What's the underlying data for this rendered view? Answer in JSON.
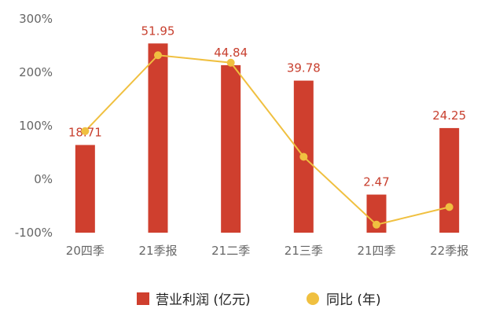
{
  "chart_data": {
    "type": "bar",
    "categories": [
      "20四季",
      "21季报",
      "21二季",
      "21三季",
      "21四季",
      "22季报"
    ],
    "series": [
      {
        "name": "营业利润 (亿元)",
        "kind": "bar",
        "axis": "left",
        "values": [
          18.71,
          51.95,
          44.84,
          39.78,
          2.47,
          24.25
        ],
        "data_labels": [
          "18.71",
          "51.95",
          "44.84",
          "39.78",
          "2.47",
          "24.25"
        ],
        "color": "#cf3f2e"
      },
      {
        "name": "同比 (年)",
        "kind": "line",
        "axis": "right",
        "values": [
          90,
          232,
          218,
          42,
          -85,
          -52
        ],
        "color": "#f0c040"
      }
    ],
    "yaxis_left": {
      "range": [
        -10,
        60
      ]
    },
    "yaxis_right": {
      "range": [
        -100,
        300
      ],
      "ticks": [
        -100,
        0,
        100,
        200,
        300
      ],
      "tick_labels": [
        "-100%",
        "0%",
        "100%",
        "200%",
        "300%"
      ]
    },
    "grid": false,
    "legend_position": "bottom"
  }
}
